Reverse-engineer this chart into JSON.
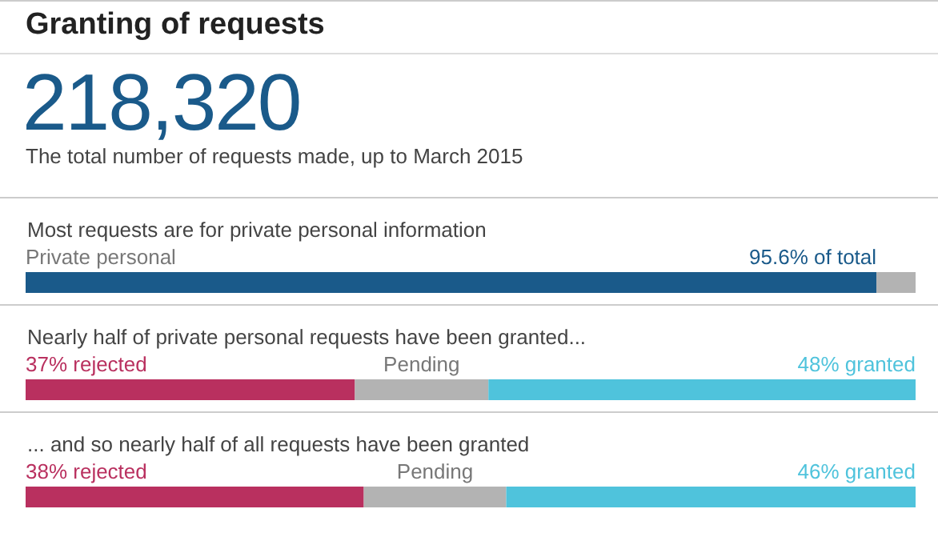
{
  "chart_data": [
    {
      "type": "other",
      "title": "Granting of requests",
      "annotations": [
        "218,320",
        "The total number of requests made, up to March 2015"
      ]
    },
    {
      "type": "bar",
      "orientation": "horizontal",
      "stacked": true,
      "title": "Most requests are for private personal information",
      "categories": [
        "Private personal"
      ],
      "series": [
        {
          "color": "#1a5a8a",
          "values": [
            95.6
          ],
          "value_labels": [
            "95.6% of total"
          ]
        },
        {
          "color": "#b3b3b3",
          "values": [
            4.4
          ]
        }
      ]
    },
    {
      "type": "bar",
      "orientation": "horizontal",
      "stacked": true,
      "title": "Nearly half of private personal requests have been granted...",
      "categories": [
        null
      ],
      "series": [
        {
          "color": "#b9305f",
          "values": [
            37
          ],
          "value_labels": [
            "37% rejected"
          ]
        },
        {
          "name": "Pending",
          "color": "#b3b3b3",
          "values": [
            15
          ]
        },
        {
          "color": "#4fc3dc",
          "values": [
            48
          ],
          "value_labels": [
            "48% granted"
          ]
        }
      ]
    },
    {
      "type": "bar",
      "orientation": "horizontal",
      "stacked": true,
      "title": "... and so nearly half of all requests have been granted",
      "categories": [
        null
      ],
      "series": [
        {
          "color": "#b9305f",
          "values": [
            38
          ],
          "value_labels": [
            "38% rejected"
          ]
        },
        {
          "name": "Pending",
          "color": "#b3b3b3",
          "values": [
            16
          ]
        },
        {
          "color": "#4fc3dc",
          "values": [
            46
          ],
          "value_labels": [
            "46% granted"
          ]
        }
      ]
    }
  ]
}
